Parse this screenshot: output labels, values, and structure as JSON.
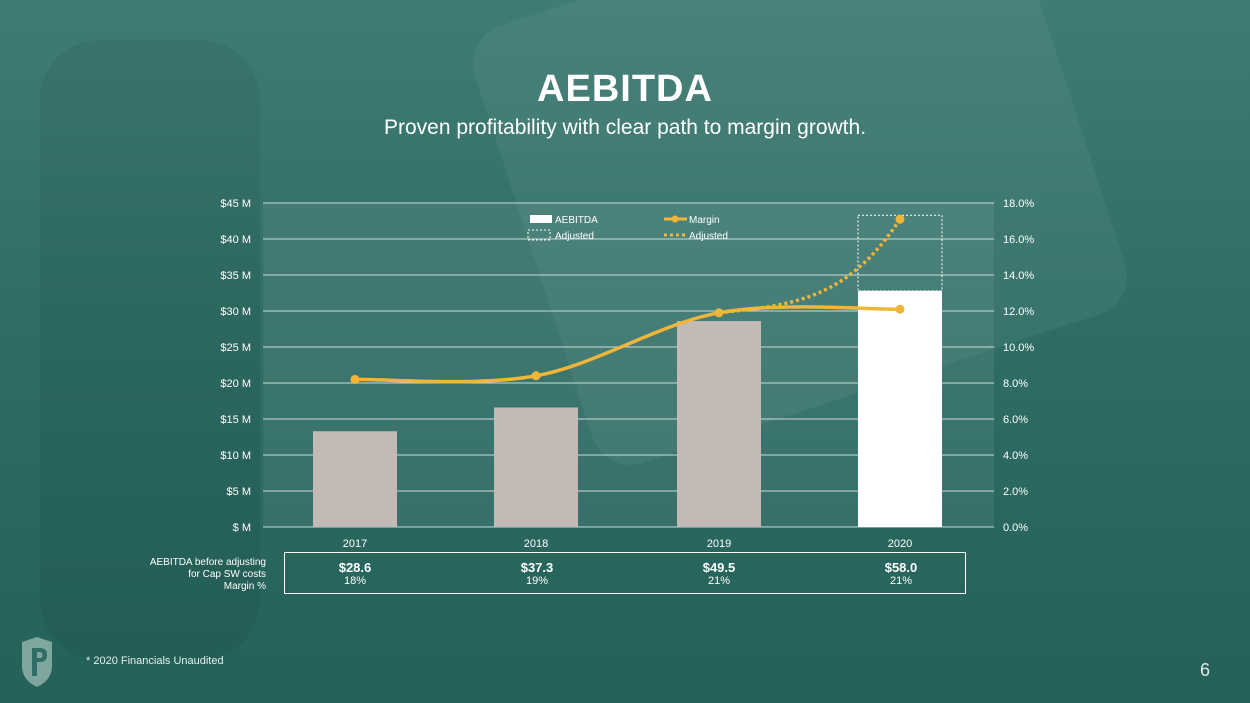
{
  "header": {
    "title": "AEBITDA",
    "subtitle": "Proven profitability with clear path to margin growth."
  },
  "colors": {
    "bar": "#c4bab5",
    "bar_highlight": "#ffffff",
    "line": "#f0b63a",
    "grid": "#e5ecea"
  },
  "chart_data": {
    "type": "bar",
    "categories": [
      "2017",
      "2018",
      "2019",
      "2020"
    ],
    "y_left": {
      "ticks": [
        "$ M",
        "$5 M",
        "$10 M",
        "$15 M",
        "$20 M",
        "$25 M",
        "$30 M",
        "$35 M",
        "$40 M",
        "$45 M"
      ],
      "range": [
        0,
        45
      ]
    },
    "y_right": {
      "ticks": [
        "0.0%",
        "2.0%",
        "4.0%",
        "6.0%",
        "8.0%",
        "10.0%",
        "12.0%",
        "14.0%",
        "16.0%",
        "18.0%"
      ],
      "range": [
        0,
        18
      ]
    },
    "grid": true,
    "legend_position": "top-center",
    "legend": [
      {
        "label": "AEBITDA",
        "kind": "bar"
      },
      {
        "label": "Margin",
        "kind": "line"
      },
      {
        "label": "Adjusted",
        "kind": "dotted-box"
      },
      {
        "label": "Adjusted",
        "kind": "dotted-line"
      }
    ],
    "series": [
      {
        "name": "AEBITDA",
        "kind": "bar",
        "values": [
          13.3,
          16.6,
          28.6,
          32.8
        ]
      },
      {
        "name": "Adjusted",
        "kind": "dotted-box",
        "values": [
          null,
          null,
          null,
          43.3
        ]
      },
      {
        "name": "Margin",
        "kind": "line",
        "values": [
          8.2,
          8.4,
          11.9,
          12.1
        ]
      },
      {
        "name": "Adjusted",
        "kind": "dotted-line",
        "values": [
          null,
          null,
          11.9,
          17.1
        ]
      }
    ]
  },
  "table": {
    "row_labels": [
      "AEBITDA before adjusting",
      "for Cap SW costs",
      "Margin %"
    ],
    "columns": [
      {
        "value": "$28.6",
        "margin": "18%"
      },
      {
        "value": "$37.3",
        "margin": "19%"
      },
      {
        "value": "$49.5",
        "margin": "21%"
      },
      {
        "value": "$58.0",
        "margin": "21%"
      }
    ]
  },
  "footer": {
    "footnote": "* 2020 Financials Unaudited",
    "page_number": "6"
  },
  "icons": {
    "logo": "shield-p-logo"
  }
}
